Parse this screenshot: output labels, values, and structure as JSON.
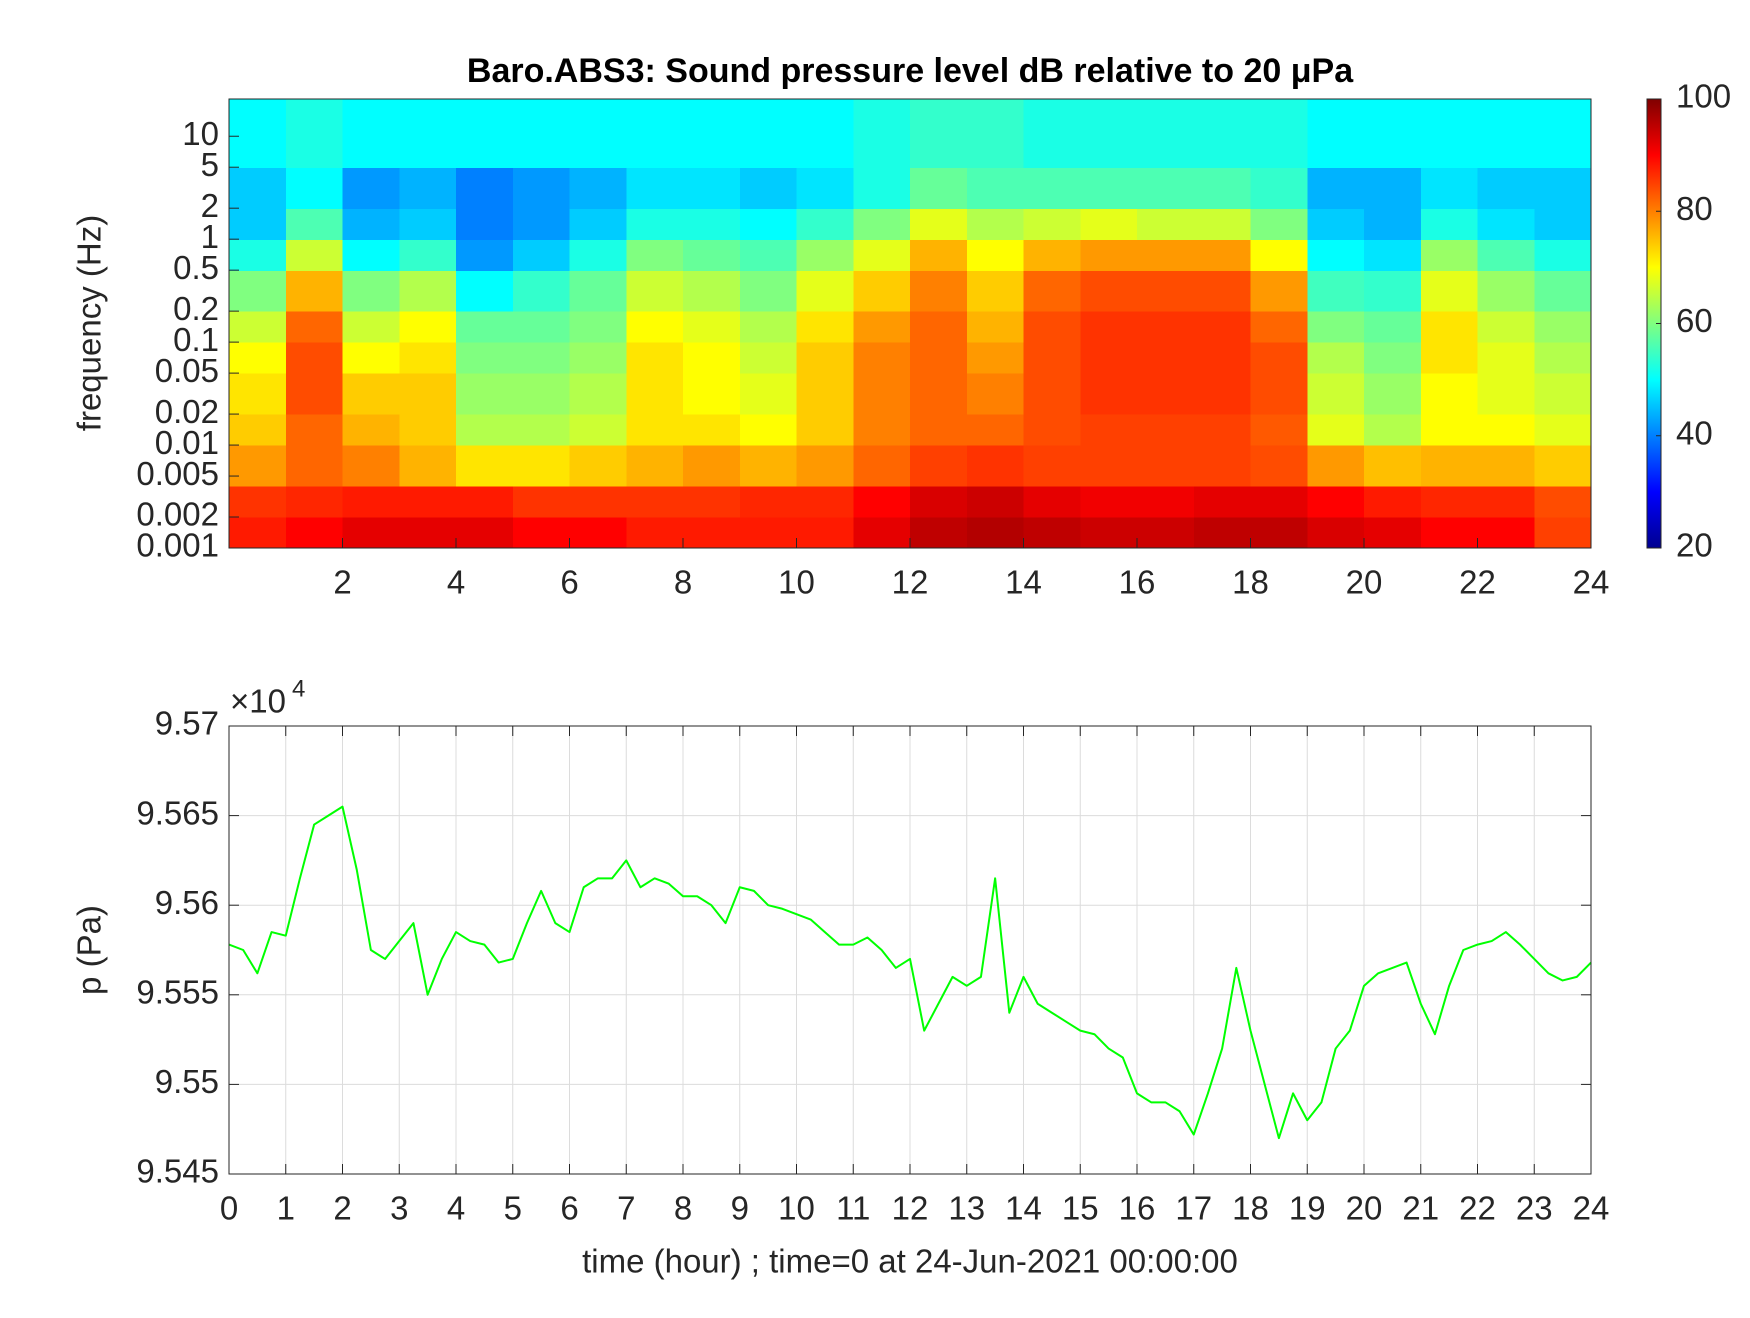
{
  "chart_data": [
    {
      "type": "heatmap",
      "title": "Baro.ABS3: Sound pressure level dB relative to 20 μPa",
      "ylabel": "frequency (Hz)",
      "colormap": "jet",
      "ylog": true,
      "xlim": [
        0,
        24
      ],
      "xticks": [
        2,
        4,
        6,
        8,
        10,
        12,
        14,
        16,
        18,
        20,
        22,
        24
      ],
      "ylim": [
        0.001,
        23
      ],
      "yticks": [
        0.001,
        0.002,
        0.005,
        0.01,
        0.02,
        0.05,
        0.1,
        0.2,
        0.5,
        1,
        2,
        5,
        10
      ],
      "xbins": [
        0,
        1,
        2,
        3,
        4,
        5,
        6,
        7,
        8,
        9,
        10,
        11,
        12,
        13,
        14,
        15,
        16,
        17,
        18,
        19,
        20,
        21,
        22,
        23,
        24
      ],
      "ybins": [
        0.001,
        0.002,
        0.004,
        0.01,
        0.02,
        0.05,
        0.1,
        0.2,
        0.5,
        1,
        2,
        5,
        23
      ],
      "z": [
        [
          88,
          90,
          92,
          92,
          92,
          90,
          90,
          88,
          88,
          88,
          88,
          92,
          95,
          96,
          95,
          94,
          94,
          95,
          95,
          93,
          92,
          90,
          90,
          85
        ],
        [
          86,
          87,
          88,
          88,
          88,
          86,
          86,
          86,
          86,
          87,
          87,
          90,
          93,
          94,
          92,
          91,
          91,
          92,
          92,
          90,
          88,
          87,
          87,
          84
        ],
        [
          78,
          82,
          80,
          76,
          72,
          72,
          74,
          76,
          78,
          76,
          78,
          82,
          85,
          86,
          85,
          85,
          85,
          85,
          84,
          78,
          75,
          76,
          76,
          74
        ],
        [
          74,
          82,
          76,
          74,
          64,
          64,
          66,
          72,
          72,
          70,
          74,
          80,
          82,
          82,
          84,
          85,
          85,
          85,
          83,
          68,
          64,
          70,
          70,
          68
        ],
        [
          72,
          84,
          74,
          74,
          62,
          62,
          64,
          72,
          70,
          68,
          74,
          80,
          82,
          80,
          84,
          86,
          86,
          86,
          84,
          66,
          62,
          70,
          68,
          66
        ],
        [
          70,
          84,
          70,
          72,
          60,
          60,
          62,
          72,
          70,
          66,
          74,
          80,
          82,
          78,
          84,
          86,
          86,
          86,
          84,
          64,
          60,
          72,
          68,
          64
        ],
        [
          66,
          82,
          66,
          70,
          58,
          58,
          60,
          70,
          68,
          64,
          72,
          78,
          82,
          76,
          84,
          86,
          86,
          86,
          82,
          60,
          58,
          72,
          66,
          62
        ],
        [
          60,
          76,
          60,
          64,
          50,
          54,
          58,
          66,
          64,
          60,
          68,
          74,
          80,
          74,
          82,
          84,
          84,
          84,
          78,
          55,
          54,
          68,
          62,
          58
        ],
        [
          52,
          66,
          50,
          54,
          42,
          46,
          52,
          60,
          58,
          56,
          62,
          68,
          76,
          70,
          76,
          78,
          78,
          78,
          70,
          50,
          48,
          62,
          56,
          52
        ],
        [
          46,
          56,
          44,
          46,
          40,
          42,
          46,
          52,
          52,
          50,
          54,
          60,
          68,
          64,
          66,
          68,
          66,
          66,
          60,
          46,
          44,
          52,
          48,
          46
        ],
        [
          46,
          50,
          42,
          44,
          40,
          42,
          44,
          48,
          48,
          46,
          48,
          52,
          58,
          56,
          56,
          56,
          56,
          56,
          54,
          44,
          44,
          48,
          46,
          46
        ],
        [
          50,
          52,
          50,
          50,
          50,
          50,
          50,
          50,
          50,
          50,
          50,
          52,
          54,
          54,
          52,
          52,
          52,
          52,
          52,
          50,
          50,
          50,
          50,
          50
        ]
      ],
      "colorbar": {
        "clim": [
          20,
          100
        ],
        "ticks": [
          20,
          40,
          60,
          80,
          100
        ]
      }
    },
    {
      "type": "line",
      "xlabel": "time (hour) ; time=0 at 24-Jun-2021 00:00:00",
      "ylabel": "p (Pa)",
      "y_multiplier": "×10",
      "y_multiplier_exponent": "4",
      "grid": true,
      "color": "#00ff00",
      "xlim": [
        0,
        24
      ],
      "xticks": [
        0,
        1,
        2,
        3,
        4,
        5,
        6,
        7,
        8,
        9,
        10,
        11,
        12,
        13,
        14,
        15,
        16,
        17,
        18,
        19,
        20,
        21,
        22,
        23,
        24
      ],
      "ylim": [
        95450,
        95700
      ],
      "yticks": [
        {
          "value": 95450,
          "label": "9.545"
        },
        {
          "value": 95500,
          "label": "9.55"
        },
        {
          "value": 95550,
          "label": "9.555"
        },
        {
          "value": 95600,
          "label": "9.56"
        },
        {
          "value": 95650,
          "label": "9.565"
        },
        {
          "value": 95700,
          "label": "9.57"
        }
      ],
      "x": [
        0,
        0.25,
        0.5,
        0.75,
        1,
        1.25,
        1.5,
        1.75,
        2,
        2.25,
        2.5,
        2.75,
        3,
        3.25,
        3.5,
        3.75,
        4,
        4.25,
        4.5,
        4.75,
        5,
        5.25,
        5.5,
        5.75,
        6,
        6.25,
        6.5,
        6.75,
        7,
        7.25,
        7.5,
        7.75,
        8,
        8.25,
        8.5,
        8.75,
        9,
        9.25,
        9.5,
        9.75,
        10,
        10.25,
        10.5,
        10.75,
        11,
        11.25,
        11.5,
        11.75,
        12,
        12.25,
        12.5,
        12.75,
        13,
        13.25,
        13.5,
        13.75,
        14,
        14.25,
        14.5,
        14.75,
        15,
        15.25,
        15.5,
        15.75,
        16,
        16.25,
        16.5,
        16.75,
        17,
        17.25,
        17.5,
        17.75,
        18,
        18.25,
        18.5,
        18.75,
        19,
        19.25,
        19.5,
        19.75,
        20,
        20.25,
        20.5,
        20.75,
        21,
        21.25,
        21.5,
        21.75,
        22,
        22.25,
        22.5,
        22.75,
        23,
        23.25,
        23.5,
        23.75,
        24
      ],
      "values": [
        95578,
        95575,
        95562,
        95585,
        95583,
        95615,
        95645,
        95650,
        95655,
        95620,
        95575,
        95570,
        95580,
        95590,
        95550,
        95570,
        95585,
        95580,
        95578,
        95568,
        95570,
        95590,
        95608,
        95590,
        95585,
        95610,
        95615,
        95615,
        95625,
        95610,
        95615,
        95612,
        95605,
        95605,
        95600,
        95590,
        95610,
        95608,
        95600,
        95598,
        95595,
        95592,
        95585,
        95578,
        95578,
        95582,
        95575,
        95565,
        95570,
        95530,
        95545,
        95560,
        95555,
        95560,
        95615,
        95540,
        95560,
        95545,
        95540,
        95535,
        95530,
        95528,
        95520,
        95515,
        95495,
        95490,
        95490,
        95485,
        95472,
        95495,
        95520,
        95565,
        95530,
        95500,
        95470,
        95495,
        95480,
        95490,
        95520,
        95530,
        95555,
        95562,
        95565,
        95568,
        95545,
        95528,
        95555,
        95575,
        95578,
        95580,
        95585,
        95578,
        95570,
        95562,
        95558,
        95560,
        95568
      ]
    }
  ]
}
